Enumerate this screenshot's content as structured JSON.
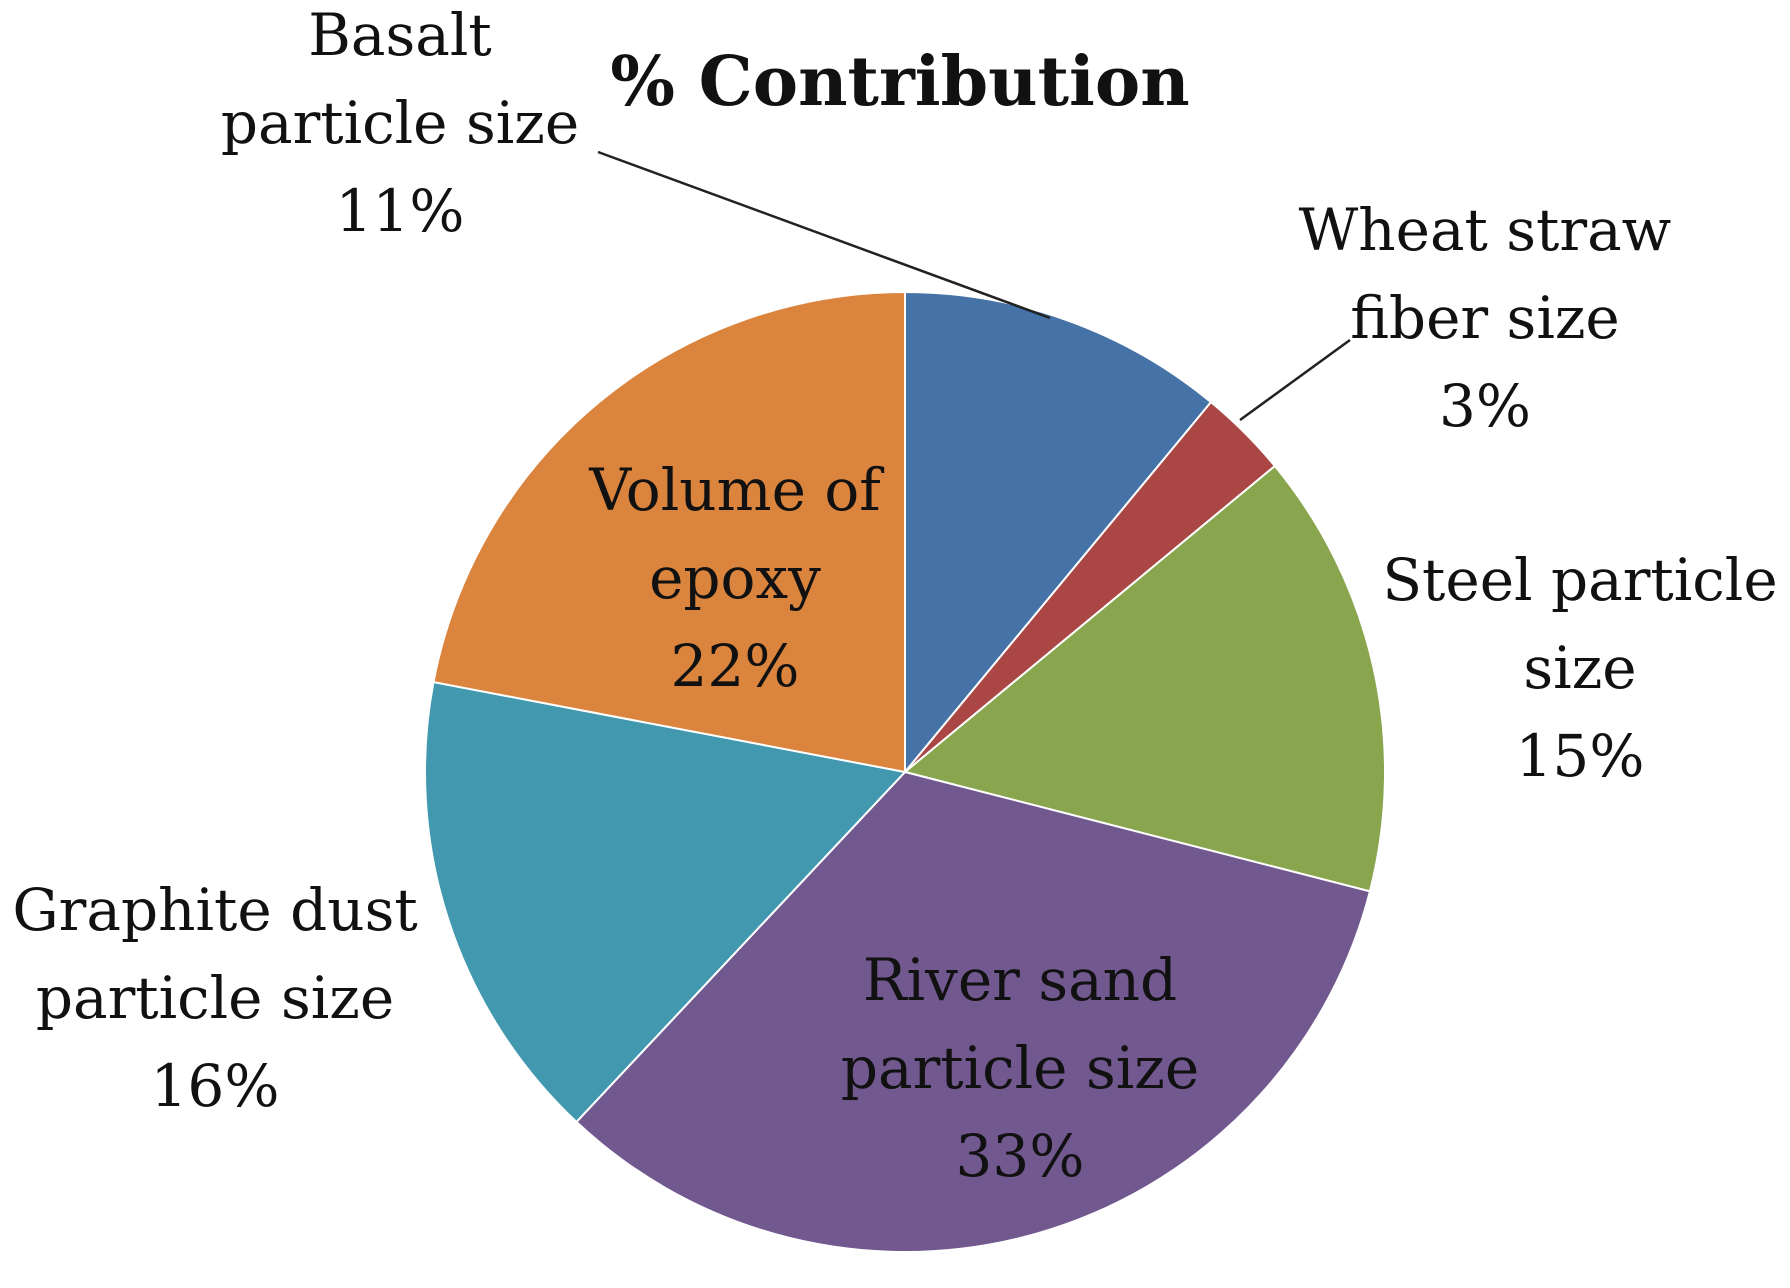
{
  "chart_data": {
    "type": "pie",
    "title": "% Contribution",
    "slices": [
      {
        "label": [
          "Basalt",
          "particle size"
        ],
        "percent_label": "11%",
        "value": 11,
        "color": "#4572a7"
      },
      {
        "label": [
          "Wheat straw",
          "fiber size"
        ],
        "percent_label": "3%",
        "value": 3,
        "color": "#aa4643"
      },
      {
        "label": [
          "Steel particle",
          "size"
        ],
        "percent_label": "15%",
        "value": 15,
        "color": "#89a54e"
      },
      {
        "label": [
          "River sand",
          "particle size"
        ],
        "percent_label": "33%",
        "value": 33,
        "color": "#71588f"
      },
      {
        "label": [
          "Graphite dust",
          "particle size"
        ],
        "percent_label": "16%",
        "value": 16,
        "color": "#4198af"
      },
      {
        "label": [
          "Volume of",
          "epoxy"
        ],
        "percent_label": "22%",
        "value": 22,
        "color": "#db843d"
      }
    ],
    "legend": "none",
    "data_labels": "category name and percentage"
  }
}
